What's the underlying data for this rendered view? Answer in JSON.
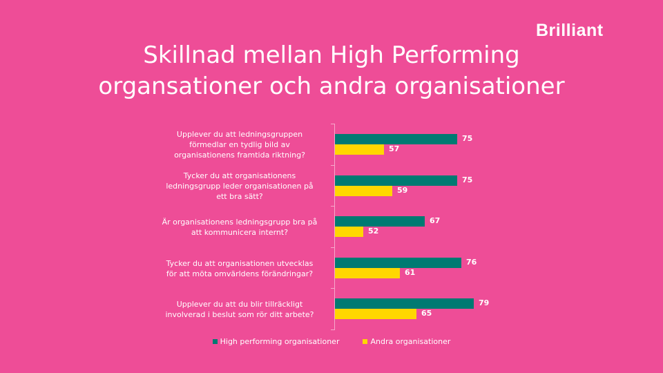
{
  "logo": "Brilliant",
  "title_lines": [
    "Skillnad mellan High Performing",
    "organsationer och andra organisationer"
  ],
  "colors": {
    "background": "#EE4D97",
    "high_performing": "#007A72",
    "andra": "#FFD700",
    "text": "#FFFFFF"
  },
  "chart_data": {
    "type": "bar",
    "orientation": "horizontal",
    "title": "Skillnad mellan High Performing organsationer och andra organisationer",
    "categories": [
      "Upplever du att ledningsgruppen förmedlar en tydlig bild av organisationens framtida riktning?",
      "Tycker du att organisationens ledningsgrupp leder organisationen på ett bra sätt?",
      "Är organisationens ledningsgrupp bra på att kommunicera internt?",
      "Tycker du att organisationen utvecklas för att möta omvärldens förändringar?",
      "Upplever du att du blir tillräckligt involverad i beslut som rör ditt arbete?"
    ],
    "series": [
      {
        "name": "High performing organisationer",
        "values": [
          75,
          75,
          67,
          76,
          79
        ]
      },
      {
        "name": "Andra organisationer",
        "values": [
          57,
          59,
          52,
          61,
          65
        ]
      }
    ],
    "xlim": [
      45,
      90
    ],
    "grid": false,
    "legend_position": "bottom",
    "data_labels": true
  },
  "label_lines": [
    [
      "Upplever du att ledningsgruppen",
      "förmedlar en tydlig bild av",
      "organisationens framtida riktning?"
    ],
    [
      "Tycker du att organisationens",
      "ledningsgrupp leder organisationen på",
      "ett bra sätt?"
    ],
    [
      "Är organisationens ledningsgrupp bra på",
      "att kommunicera internt?"
    ],
    [
      "Tycker du att organisationen utvecklas",
      "för att möta omvärldens förändringar?"
    ],
    [
      "Upplever du att du blir tillräckligt",
      "involverad i beslut som rör ditt arbete?"
    ]
  ],
  "legend": [
    {
      "label": "High performing organisationer"
    },
    {
      "label": "Andra organisationer"
    }
  ]
}
